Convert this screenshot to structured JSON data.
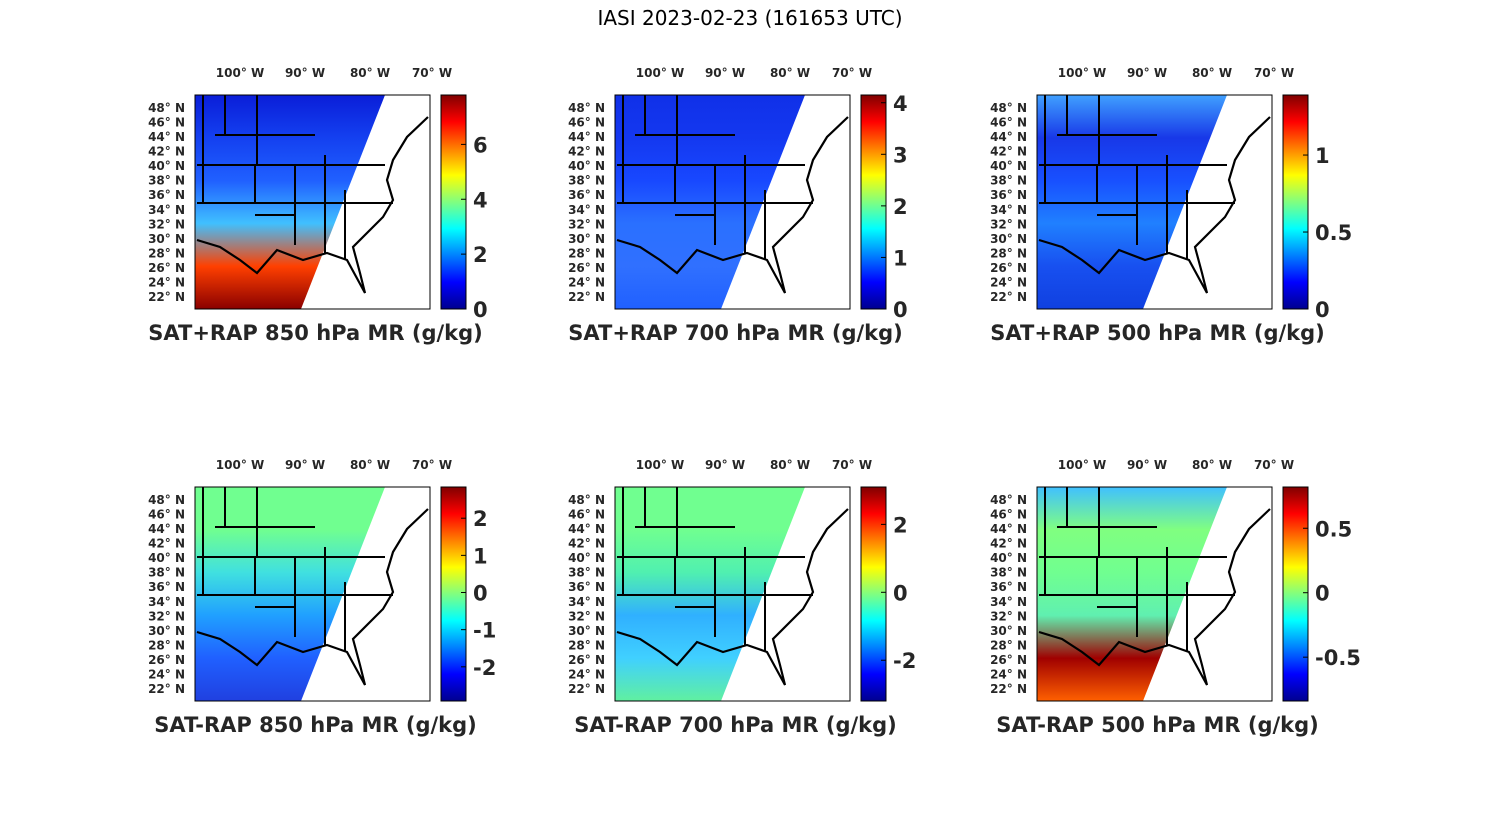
{
  "figure": {
    "title": "IASI 2023-02-23 (161653 UTC)"
  },
  "lon_labels": [
    "100° W",
    "90° W",
    "80° W",
    "70° W"
  ],
  "lat_labels": [
    "48° N",
    "46° N",
    "44° N",
    "42° N",
    "40° N",
    "38° N",
    "36° N",
    "34° N",
    "32° N",
    "30° N",
    "28° N",
    "26° N",
    "24° N",
    "22° N"
  ],
  "colormap": [
    "#00008f",
    "#0000ff",
    "#0080ff",
    "#00ffff",
    "#80ff80",
    "#ffff00",
    "#ff8000",
    "#ff0000",
    "#800000"
  ],
  "panels": [
    {
      "title": "SAT+RAP 850 hPa MR (g/kg)",
      "cmin": 0,
      "cmax": 7.8,
      "ticks": [
        0,
        2,
        4,
        6
      ],
      "tick_labels": [
        "0",
        "2",
        "4",
        "6"
      ],
      "swath_colors": [
        "#0a1ed8",
        "#1440f0",
        "#2060ff",
        "#40c0ff",
        "#ff4000",
        "#8a0000"
      ]
    },
    {
      "title": "SAT+RAP 700 hPa MR (g/kg)",
      "cmin": 0,
      "cmax": 4.15,
      "ticks": [
        0,
        1,
        2,
        3,
        4
      ],
      "tick_labels": [
        "0",
        "1",
        "2",
        "3",
        "4"
      ],
      "swath_colors": [
        "#1030e8",
        "#1438f0",
        "#1848ff",
        "#2a70ff",
        "#3070ff",
        "#2060ff"
      ]
    },
    {
      "title": "SAT+RAP 500 hPa MR (g/kg)",
      "cmin": 0,
      "cmax": 1.39,
      "ticks": [
        0,
        0.5,
        1
      ],
      "tick_labels": [
        "0",
        "0.5",
        "1"
      ],
      "swath_colors": [
        "#40a0ff",
        "#1838e8",
        "#1850ff",
        "#2080ff",
        "#1850f0",
        "#1040e0"
      ]
    },
    {
      "title": "SAT-RAP 850 hPa MR (g/kg)",
      "cmin": -2.92,
      "cmax": 2.84,
      "ticks": [
        -2,
        -1,
        0,
        1,
        2
      ],
      "tick_labels": [
        "-2",
        "-1",
        "0",
        "1",
        "2"
      ],
      "swath_colors": [
        "#70ff90",
        "#70ff90",
        "#40e0e0",
        "#20a0ff",
        "#2060ff",
        "#2040e0"
      ]
    },
    {
      "title": "SAT-RAP 700 hPa MR (g/kg)",
      "cmin": -3.2,
      "cmax": 3.1,
      "ticks": [
        -2,
        0,
        2
      ],
      "tick_labels": [
        "-2",
        "0",
        "2"
      ],
      "swath_colors": [
        "#70ff90",
        "#70ff90",
        "#50f0b0",
        "#30b0ff",
        "#40d0ff",
        "#60f0a0"
      ]
    },
    {
      "title": "SAT-RAP 500 hPa MR (g/kg)",
      "cmin": -0.84,
      "cmax": 0.82,
      "ticks": [
        -0.5,
        0,
        0.5
      ],
      "tick_labels": [
        "-0.5",
        "0",
        "0.5"
      ],
      "swath_colors": [
        "#40c0ff",
        "#80ff80",
        "#70ff90",
        "#60f0b0",
        "#a00000",
        "#ff6000"
      ]
    }
  ]
}
